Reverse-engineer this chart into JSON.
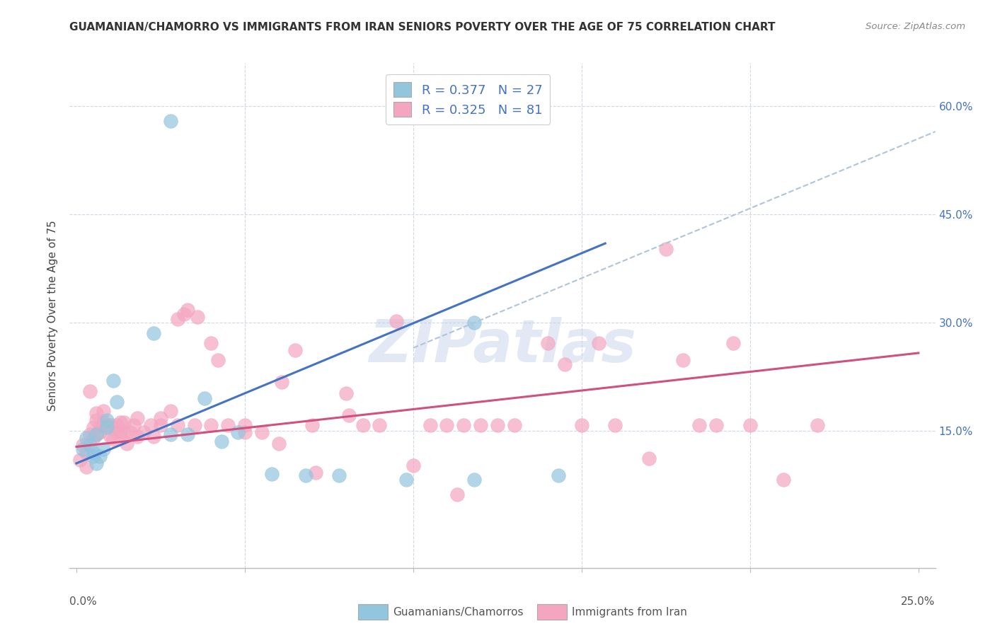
{
  "title": "GUAMANIAN/CHAMORRO VS IMMIGRANTS FROM IRAN SENIORS POVERTY OVER THE AGE OF 75 CORRELATION CHART",
  "source": "Source: ZipAtlas.com",
  "ylabel": "Seniors Poverty Over the Age of 75",
  "ytick_labels": [
    "60.0%",
    "45.0%",
    "30.0%",
    "15.0%"
  ],
  "ytick_positions": [
    0.6,
    0.45,
    0.3,
    0.15
  ],
  "xtick_positions": [
    0.0,
    0.05,
    0.1,
    0.15,
    0.2,
    0.25
  ],
  "xlim": [
    -0.002,
    0.255
  ],
  "ylim": [
    -0.04,
    0.66
  ],
  "legend_label1": "R = 0.377   N = 27",
  "legend_label2": "R = 0.325   N = 81",
  "color_blue": "#92c5de",
  "color_pink": "#f4a6c0",
  "color_line_blue": "#4472c4",
  "color_line_pink": "#d05080",
  "color_line_dashed": "#b0c4d8",
  "bottom_label1": "Guamanians/Chamorros",
  "bottom_label2": "Immigrants from Iran",
  "scatter_blue": [
    [
      0.002,
      0.125
    ],
    [
      0.003,
      0.14
    ],
    [
      0.004,
      0.13
    ],
    [
      0.005,
      0.12
    ],
    [
      0.005,
      0.115
    ],
    [
      0.006,
      0.105
    ],
    [
      0.006,
      0.145
    ],
    [
      0.007,
      0.115
    ],
    [
      0.008,
      0.125
    ],
    [
      0.009,
      0.155
    ],
    [
      0.009,
      0.165
    ],
    [
      0.011,
      0.22
    ],
    [
      0.012,
      0.19
    ],
    [
      0.023,
      0.285
    ],
    [
      0.028,
      0.145
    ],
    [
      0.033,
      0.145
    ],
    [
      0.038,
      0.195
    ],
    [
      0.043,
      0.135
    ],
    [
      0.048,
      0.148
    ],
    [
      0.058,
      0.09
    ],
    [
      0.068,
      0.088
    ],
    [
      0.078,
      0.088
    ],
    [
      0.098,
      0.082
    ],
    [
      0.118,
      0.082
    ],
    [
      0.118,
      0.3
    ],
    [
      0.143,
      0.088
    ],
    [
      0.028,
      0.58
    ]
  ],
  "scatter_pink": [
    [
      0.001,
      0.11
    ],
    [
      0.002,
      0.13
    ],
    [
      0.003,
      0.12
    ],
    [
      0.003,
      0.1
    ],
    [
      0.004,
      0.145
    ],
    [
      0.004,
      0.205
    ],
    [
      0.005,
      0.14
    ],
    [
      0.005,
      0.155
    ],
    [
      0.006,
      0.145
    ],
    [
      0.006,
      0.165
    ],
    [
      0.006,
      0.175
    ],
    [
      0.007,
      0.155
    ],
    [
      0.007,
      0.148
    ],
    [
      0.008,
      0.178
    ],
    [
      0.008,
      0.162
    ],
    [
      0.009,
      0.158
    ],
    [
      0.01,
      0.158
    ],
    [
      0.01,
      0.142
    ],
    [
      0.011,
      0.138
    ],
    [
      0.012,
      0.148
    ],
    [
      0.012,
      0.158
    ],
    [
      0.013,
      0.148
    ],
    [
      0.013,
      0.162
    ],
    [
      0.014,
      0.148
    ],
    [
      0.014,
      0.162
    ],
    [
      0.015,
      0.132
    ],
    [
      0.016,
      0.148
    ],
    [
      0.017,
      0.158
    ],
    [
      0.018,
      0.142
    ],
    [
      0.018,
      0.168
    ],
    [
      0.02,
      0.148
    ],
    [
      0.022,
      0.158
    ],
    [
      0.023,
      0.142
    ],
    [
      0.025,
      0.158
    ],
    [
      0.025,
      0.168
    ],
    [
      0.028,
      0.178
    ],
    [
      0.03,
      0.158
    ],
    [
      0.03,
      0.305
    ],
    [
      0.032,
      0.312
    ],
    [
      0.033,
      0.318
    ],
    [
      0.035,
      0.158
    ],
    [
      0.036,
      0.308
    ],
    [
      0.04,
      0.158
    ],
    [
      0.04,
      0.272
    ],
    [
      0.042,
      0.248
    ],
    [
      0.045,
      0.158
    ],
    [
      0.05,
      0.148
    ],
    [
      0.05,
      0.158
    ],
    [
      0.055,
      0.148
    ],
    [
      0.06,
      0.132
    ],
    [
      0.061,
      0.218
    ],
    [
      0.065,
      0.262
    ],
    [
      0.07,
      0.158
    ],
    [
      0.071,
      0.092
    ],
    [
      0.08,
      0.202
    ],
    [
      0.081,
      0.172
    ],
    [
      0.085,
      0.158
    ],
    [
      0.09,
      0.158
    ],
    [
      0.095,
      0.302
    ],
    [
      0.1,
      0.102
    ],
    [
      0.105,
      0.158
    ],
    [
      0.11,
      0.158
    ],
    [
      0.115,
      0.158
    ],
    [
      0.12,
      0.158
    ],
    [
      0.125,
      0.158
    ],
    [
      0.13,
      0.158
    ],
    [
      0.14,
      0.272
    ],
    [
      0.145,
      0.242
    ],
    [
      0.15,
      0.158
    ],
    [
      0.155,
      0.272
    ],
    [
      0.16,
      0.158
    ],
    [
      0.17,
      0.112
    ],
    [
      0.175,
      0.402
    ],
    [
      0.18,
      0.248
    ],
    [
      0.185,
      0.158
    ],
    [
      0.19,
      0.158
    ],
    [
      0.195,
      0.272
    ],
    [
      0.2,
      0.158
    ],
    [
      0.21,
      0.082
    ],
    [
      0.22,
      0.158
    ],
    [
      0.113,
      0.062
    ]
  ],
  "blue_line_x": [
    0.0,
    0.157
  ],
  "blue_line_y": [
    0.105,
    0.41
  ],
  "pink_line_x": [
    0.0,
    0.25
  ],
  "pink_line_y": [
    0.128,
    0.258
  ],
  "dashed_line_x": [
    0.1,
    0.255
  ],
  "dashed_line_y": [
    0.265,
    0.565
  ],
  "background_color": "#ffffff",
  "plot_bg_color": "#ffffff",
  "grid_color": "#d0d8e8",
  "watermark": "ZIPatlas",
  "watermark_color": "#c0cfe8",
  "watermark_alpha": 0.45
}
